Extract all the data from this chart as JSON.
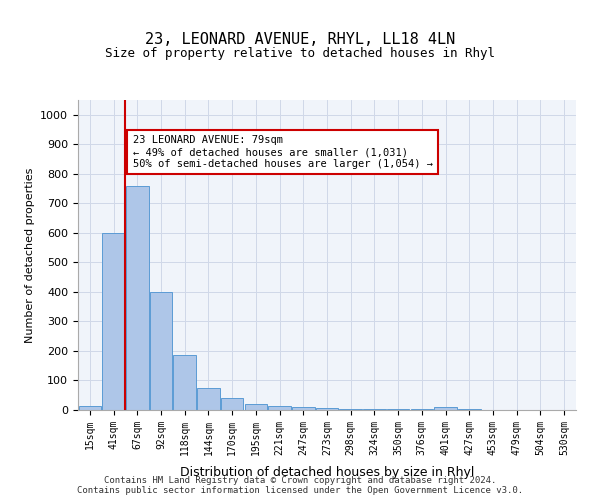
{
  "title1": "23, LEONARD AVENUE, RHYL, LL18 4LN",
  "title2": "Size of property relative to detached houses in Rhyl",
  "xlabel": "Distribution of detached houses by size in Rhyl",
  "ylabel": "Number of detached properties",
  "bin_labels": [
    "15sqm",
    "41sqm",
    "67sqm",
    "92sqm",
    "118sqm",
    "144sqm",
    "170sqm",
    "195sqm",
    "221sqm",
    "247sqm",
    "273sqm",
    "298sqm",
    "324sqm",
    "350sqm",
    "376sqm",
    "401sqm",
    "427sqm",
    "453sqm",
    "479sqm",
    "504sqm",
    "530sqm"
  ],
  "bar_values": [
    15,
    600,
    760,
    400,
    185,
    75,
    40,
    20,
    15,
    10,
    8,
    5,
    4,
    3,
    2,
    10,
    2,
    1,
    1,
    1,
    1
  ],
  "bar_color": "#aec6e8",
  "bar_edge_color": "#5b9bd5",
  "ylim": [
    0,
    1050
  ],
  "yticks": [
    0,
    100,
    200,
    300,
    400,
    500,
    600,
    700,
    800,
    900,
    1000
  ],
  "property_sqm": 79,
  "red_line_bar_index": 2,
  "annotation_text": "23 LEONARD AVENUE: 79sqm\n← 49% of detached houses are smaller (1,031)\n50% of semi-detached houses are larger (1,054) →",
  "annotation_box_color": "#ffffff",
  "annotation_box_edge_color": "#cc0000",
  "red_line_color": "#cc0000",
  "footnote": "Contains HM Land Registry data © Crown copyright and database right 2024.\nContains public sector information licensed under the Open Government Licence v3.0.",
  "grid_color": "#d0d8e8",
  "background_color": "#f0f4fa"
}
